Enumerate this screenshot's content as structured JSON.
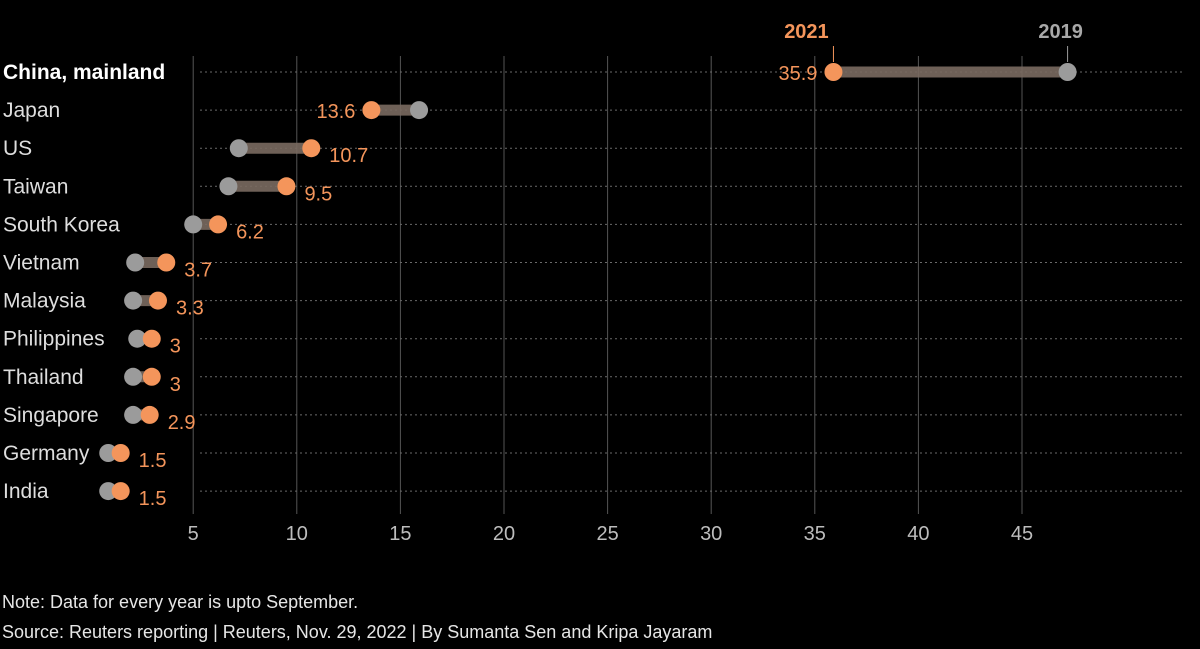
{
  "chart_data": {
    "type": "dumbbell",
    "title": "",
    "xlabel": "",
    "ylabel": "",
    "xlim": [
      0,
      47.7
    ],
    "x_ticks": [
      5,
      10,
      15,
      20,
      25,
      30,
      35,
      40,
      45
    ],
    "grid": true,
    "series": [
      {
        "name": "2021",
        "color": "#f4955b"
      },
      {
        "name": "2019",
        "color": "#9b9b9b"
      }
    ],
    "categories": [
      "China, mainland",
      "Japan",
      "US",
      "Taiwan",
      "South Korea",
      "Vietnam",
      "Malaysia",
      "Philippines",
      "Thailand",
      "Singapore",
      "Germany",
      "India"
    ],
    "highlight_category": "China, mainland",
    "values_2021": [
      35.9,
      13.6,
      10.7,
      9.5,
      6.2,
      3.7,
      3.3,
      3,
      3,
      2.9,
      1.5,
      1.5
    ],
    "labels_2021": [
      "35.9",
      "13.6",
      "10.7",
      "9.5",
      "6.2",
      "3.7",
      "3.3",
      "3",
      "3",
      "2.9",
      "1.5",
      "1.5"
    ],
    "values_2019": [
      47.2,
      15.9,
      7.2,
      6.7,
      5.0,
      2.2,
      2.1,
      2.3,
      2.1,
      2.1,
      0.9,
      0.9
    ]
  },
  "footer": {
    "note": "Note: Data for every year is upto September.",
    "source": "Source: Reuters reporting | Reuters, Nov. 29, 2022 | By Sumanta Sen and Kripa Jayaram"
  }
}
